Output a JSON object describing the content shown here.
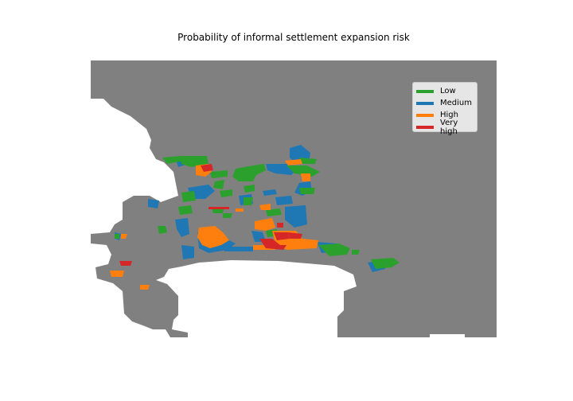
{
  "title": "Probability of informal settlement expansion risk",
  "legend": {
    "items": [
      {
        "label": "Low",
        "color": "#2ca02c"
      },
      {
        "label": "Medium",
        "color": "#1f77b4"
      },
      {
        "label": "High",
        "color": "#ff7f0e"
      },
      {
        "label": "Very high",
        "color": "#d62728"
      }
    ]
  },
  "colors": {
    "background_area": "#808080",
    "low": "#2ca02c",
    "medium": "#1f77b4",
    "high": "#ff7f0e",
    "very_high": "#d62728"
  }
}
